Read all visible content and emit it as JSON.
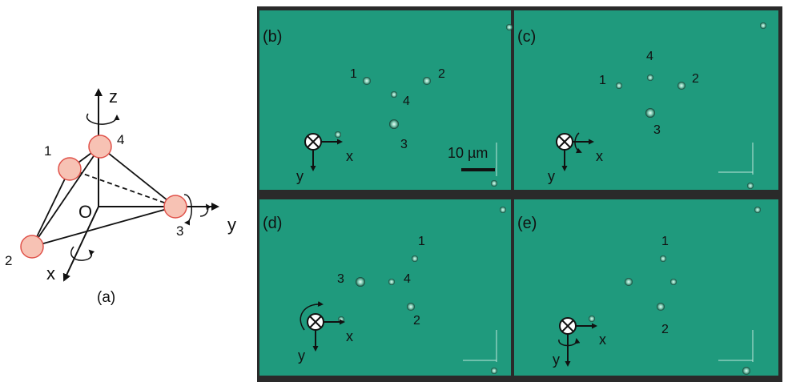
{
  "panel_a": {
    "label": "(a)",
    "axis_z": "z",
    "axis_x": "x",
    "axis_y": "y",
    "origin": "O",
    "sphere_labels": [
      "1",
      "2",
      "3",
      "4"
    ]
  },
  "panels": [
    {
      "label": "(b)",
      "particles": [
        "1",
        "2",
        "4",
        "3"
      ],
      "axis_x": "x",
      "axis_y": "y",
      "scale_label": "10 µm"
    },
    {
      "label": "(c)",
      "particles": [
        "4",
        "1",
        "2",
        "3"
      ],
      "axis_x": "x",
      "axis_y": "y"
    },
    {
      "label": "(d)",
      "particles": [
        "1",
        "3",
        "4",
        "2"
      ],
      "axis_x": "x",
      "axis_y": "y"
    },
    {
      "label": "(e)",
      "particles": [
        "1",
        "2"
      ],
      "axis_x": "x",
      "axis_y": "y"
    }
  ],
  "colors": {
    "sphere_fill": "#f7c2b4",
    "sphere_stroke": "#e0524a",
    "micrograph": "#1f9a7d",
    "frame": "#2a2a2a"
  }
}
